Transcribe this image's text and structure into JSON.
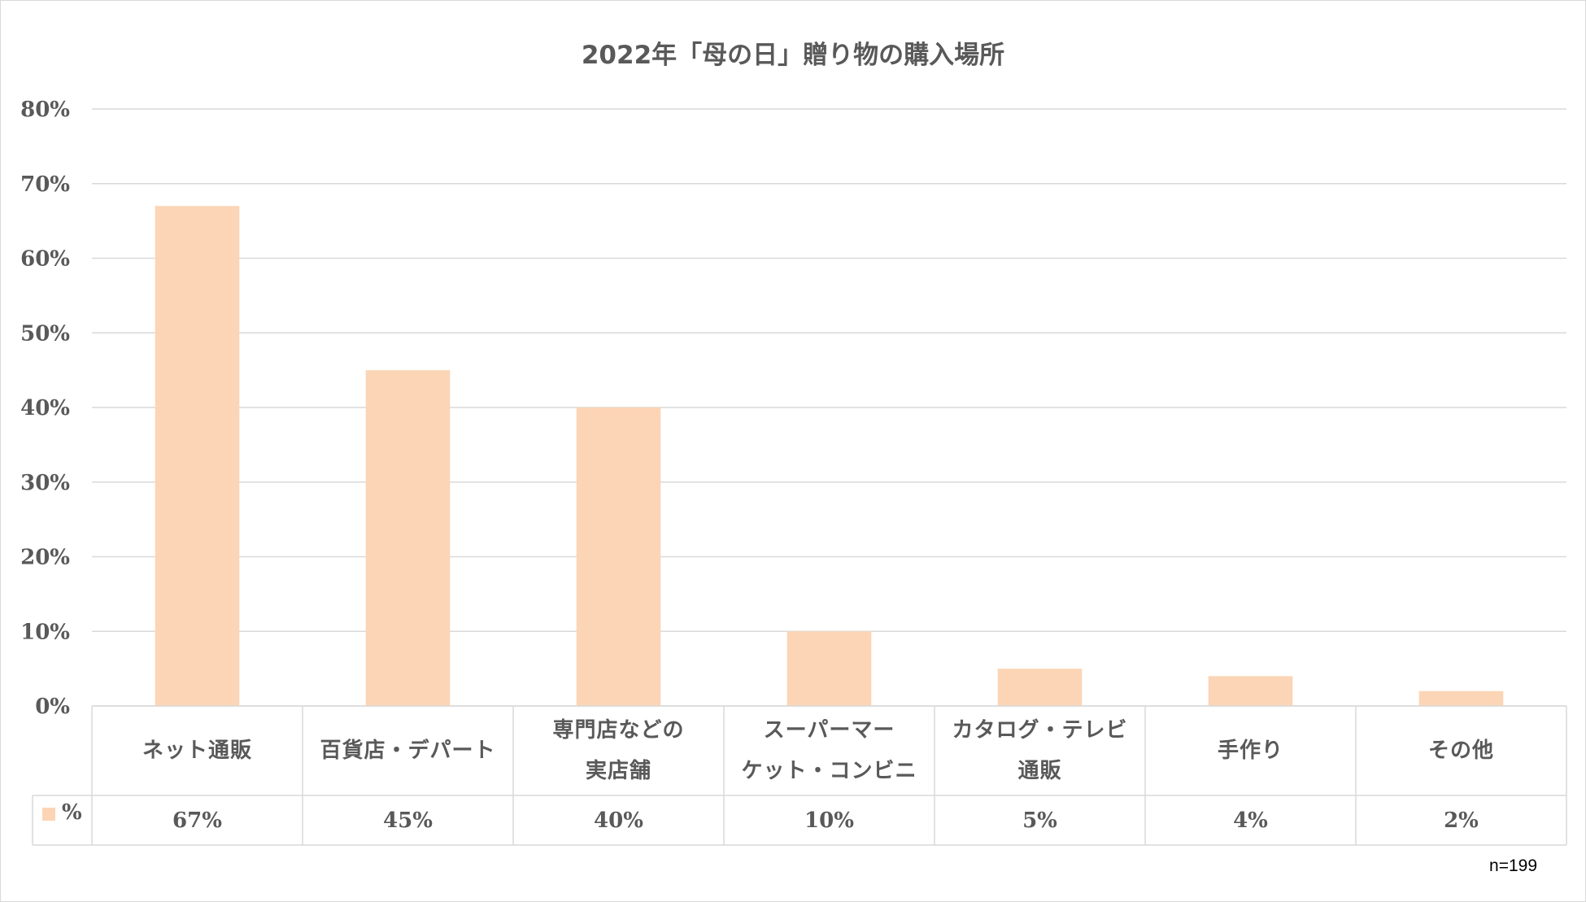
{
  "chart_data": {
    "type": "bar",
    "title": "2022年「母の日」贈り物の購入場所",
    "categories": [
      "ネット通販",
      "百貨店・デパート",
      "専門店などの\n実店舗",
      "スーパーマー\nケット・コンビニ",
      "カタログ・テレビ\n通販",
      "手作り",
      "その他"
    ],
    "series": [
      {
        "name": "%",
        "values": [
          0.67,
          0.45,
          0.4,
          0.1,
          0.05,
          0.04,
          0.02
        ],
        "table_labels": [
          "67%",
          "45%",
          "40%",
          "10%",
          "5%",
          "4%",
          "2%"
        ]
      }
    ],
    "ylim": [
      0,
      0.8
    ],
    "yticks": [
      0,
      0.1,
      0.2,
      0.3,
      0.4,
      0.5,
      0.6,
      0.7,
      0.8
    ],
    "ytick_labels": [
      "0%",
      "10%",
      "20%",
      "30%",
      "40%",
      "50%",
      "60%",
      "70%",
      "80%"
    ],
    "grid": true,
    "data_table": true,
    "bar_color": "#fbd5b5",
    "grid_color": "#d9d9d9",
    "text_color": "#595959",
    "note": "n=199"
  }
}
